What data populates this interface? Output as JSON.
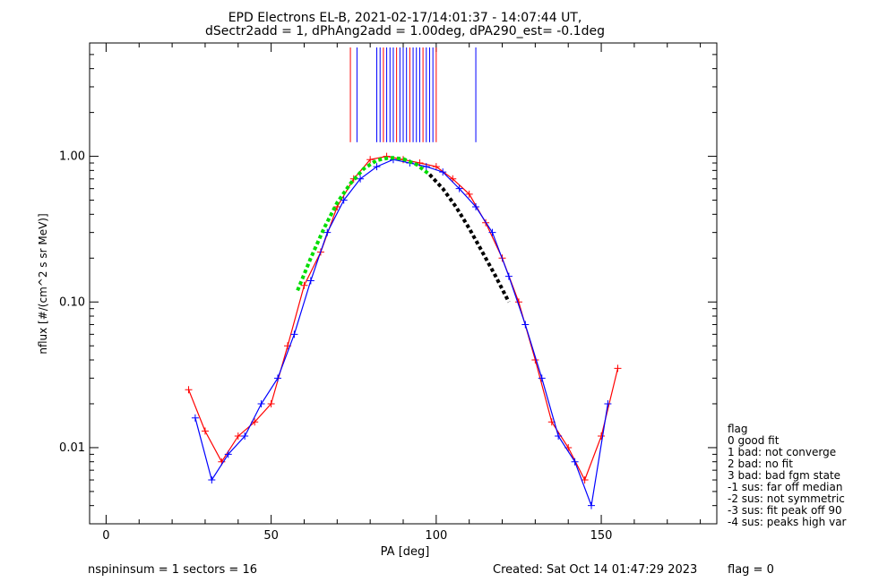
{
  "chart_data": {
    "type": "scatter",
    "title": "EPD Electrons EL-B, 2021-02-17/14:01:37 - 14:07:44 UT,",
    "subtitle": "dSectr2add = 1, dPhAng2add = 1.00deg, dPA290_est=  -0.1deg",
    "xlabel": "PA [deg]",
    "ylabel": "nflux [#/(cm^2 s sr MeV)]",
    "xlim": [
      -5,
      185
    ],
    "ylim": [
      0.003,
      6.0
    ],
    "yscale": "log",
    "grid": false,
    "x_ticks": [
      0,
      50,
      100,
      150
    ],
    "x_tick_labels": [
      "0",
      "50",
      "100",
      "150"
    ],
    "y_ticks": [
      0.01,
      0.1,
      1.0
    ],
    "y_tick_labels": [
      "0.01",
      "0.10",
      "1.00"
    ],
    "colors": {
      "red": "#ff0000",
      "blue": "#0000ff",
      "green": "#00dd00",
      "black": "#000000"
    },
    "series": [
      {
        "color": "#ff0000",
        "x": [
          25,
          30,
          35,
          40,
          45,
          50,
          55,
          60,
          65,
          70,
          75,
          80,
          85,
          90,
          95,
          100,
          105,
          110,
          115,
          120,
          125,
          130,
          135,
          140,
          145,
          150,
          155
        ],
        "y": [
          0.025,
          0.013,
          0.008,
          0.012,
          0.015,
          0.02,
          0.05,
          0.13,
          0.22,
          0.45,
          0.7,
          0.95,
          1.0,
          0.95,
          0.9,
          0.85,
          0.7,
          0.55,
          0.35,
          0.2,
          0.1,
          0.04,
          0.015,
          0.01,
          0.006,
          0.012,
          0.035
        ]
      },
      {
        "color": "#0000ff",
        "x": [
          27,
          32,
          37,
          42,
          47,
          52,
          57,
          62,
          67,
          72,
          77,
          82,
          87,
          92,
          97,
          102,
          107,
          112,
          117,
          122,
          127,
          132,
          137,
          142,
          147,
          152
        ],
        "y": [
          0.016,
          0.006,
          0.009,
          0.012,
          0.02,
          0.03,
          0.06,
          0.14,
          0.3,
          0.5,
          0.7,
          0.85,
          0.95,
          0.9,
          0.85,
          0.78,
          0.6,
          0.45,
          0.3,
          0.15,
          0.07,
          0.03,
          0.012,
          0.008,
          0.004,
          0.02
        ]
      },
      {
        "name": "",
        "color": "#00dd00",
        "x": [
          58,
          62,
          66,
          70,
          74,
          78,
          82,
          86,
          90,
          94,
          98
        ],
        "y": [
          0.12,
          0.2,
          0.32,
          0.48,
          0.65,
          0.82,
          0.94,
          0.98,
          0.96,
          0.88,
          0.75
        ]
      },
      {
        "color": "#000000",
        "x": [
          98,
          102,
          106,
          110,
          114,
          118,
          122
        ],
        "y": [
          0.75,
          0.6,
          0.45,
          0.32,
          0.22,
          0.15,
          0.1
        ]
      }
    ],
    "vertical_lines_x": [
      74,
      76,
      82,
      83,
      84,
      85,
      86,
      87,
      88,
      89,
      90,
      91,
      92,
      93,
      94,
      95,
      96,
      97,
      98,
      99,
      100,
      112
    ],
    "legend": {
      "title": "flag",
      "items": [
        " 0 good fit",
        "  1 bad: not converge",
        "  2 bad: no fit",
        "  3 bad: bad fgm state",
        "-1 sus: far off median",
        "-2 sus: not symmetric",
        "-3 sus: fit peak off 90",
        "-4 sus: peaks high var"
      ]
    }
  },
  "footer": {
    "left": "nspininsum =  1  sectors = 16",
    "created": "Created: Sat Oct 14 01:47:29 2023",
    "flag": "flag = 0"
  }
}
